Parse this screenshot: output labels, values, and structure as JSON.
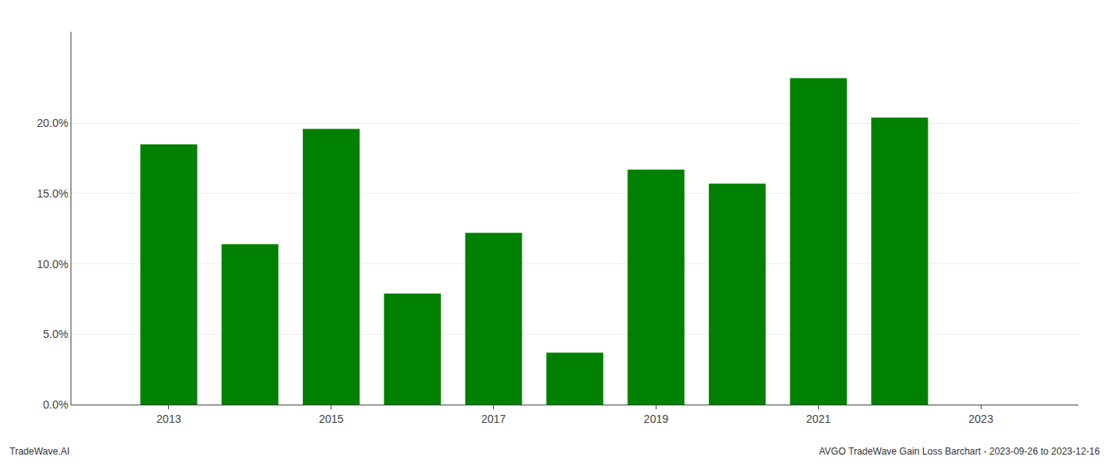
{
  "chart_data": {
    "type": "bar",
    "x": [
      2013,
      2014,
      2015,
      2016,
      2017,
      2018,
      2019,
      2020,
      2021,
      2022,
      2023
    ],
    "values": [
      0.185,
      0.114,
      0.196,
      0.079,
      0.122,
      0.037,
      0.167,
      0.157,
      0.232,
      0.204,
      null
    ],
    "color": "#008000",
    "xlim": [
      2011.8,
      2024.2
    ],
    "xticks": [
      2013,
      2015,
      2017,
      2019,
      2021,
      2023
    ],
    "ylim": [
      0,
      0.265
    ],
    "yticks": [
      {
        "value": 0.0,
        "label": "0.0%"
      },
      {
        "value": 0.05,
        "label": "5.0%"
      },
      {
        "value": 0.1,
        "label": "10.0%"
      },
      {
        "value": 0.15,
        "label": "15.0%"
      },
      {
        "value": 0.2,
        "label": "20.0%"
      }
    ],
    "grid": true,
    "annotations": [
      "TradeWave.AI",
      "AVGO TradeWave Gain Loss Barchart - 2023-09-26 to 2023-12-16"
    ]
  }
}
